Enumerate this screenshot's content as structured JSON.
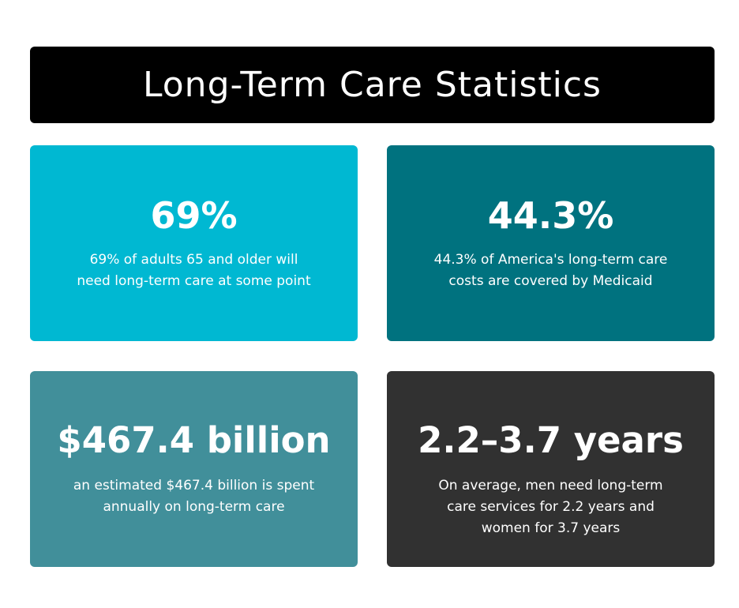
{
  "title": "Long-Term Care Statistics",
  "colors": {
    "title_background": "#000000",
    "card_1_background": "#00B8D2",
    "card_2_background": "#00727F",
    "card_3_background": "#418F9A",
    "card_4_background": "#313131",
    "text": "#FFFFFF"
  },
  "cards": [
    {
      "stat": "69%",
      "description": [
        "69% of adults 65 and older will",
        "need long-term care at some point"
      ]
    },
    {
      "stat": "44.3%",
      "description": [
        "44.3% of America's long-term care",
        "costs are covered by Medicaid"
      ]
    },
    {
      "stat": "$467.4 billion",
      "description": [
        "an estimated $467.4 billion is spent",
        "annually on long-term care"
      ]
    },
    {
      "stat": "2.2–3.7 years",
      "description": [
        "On average, men need long-term",
        "care services for 2.2 years and",
        "women for 3.7 years"
      ]
    }
  ]
}
